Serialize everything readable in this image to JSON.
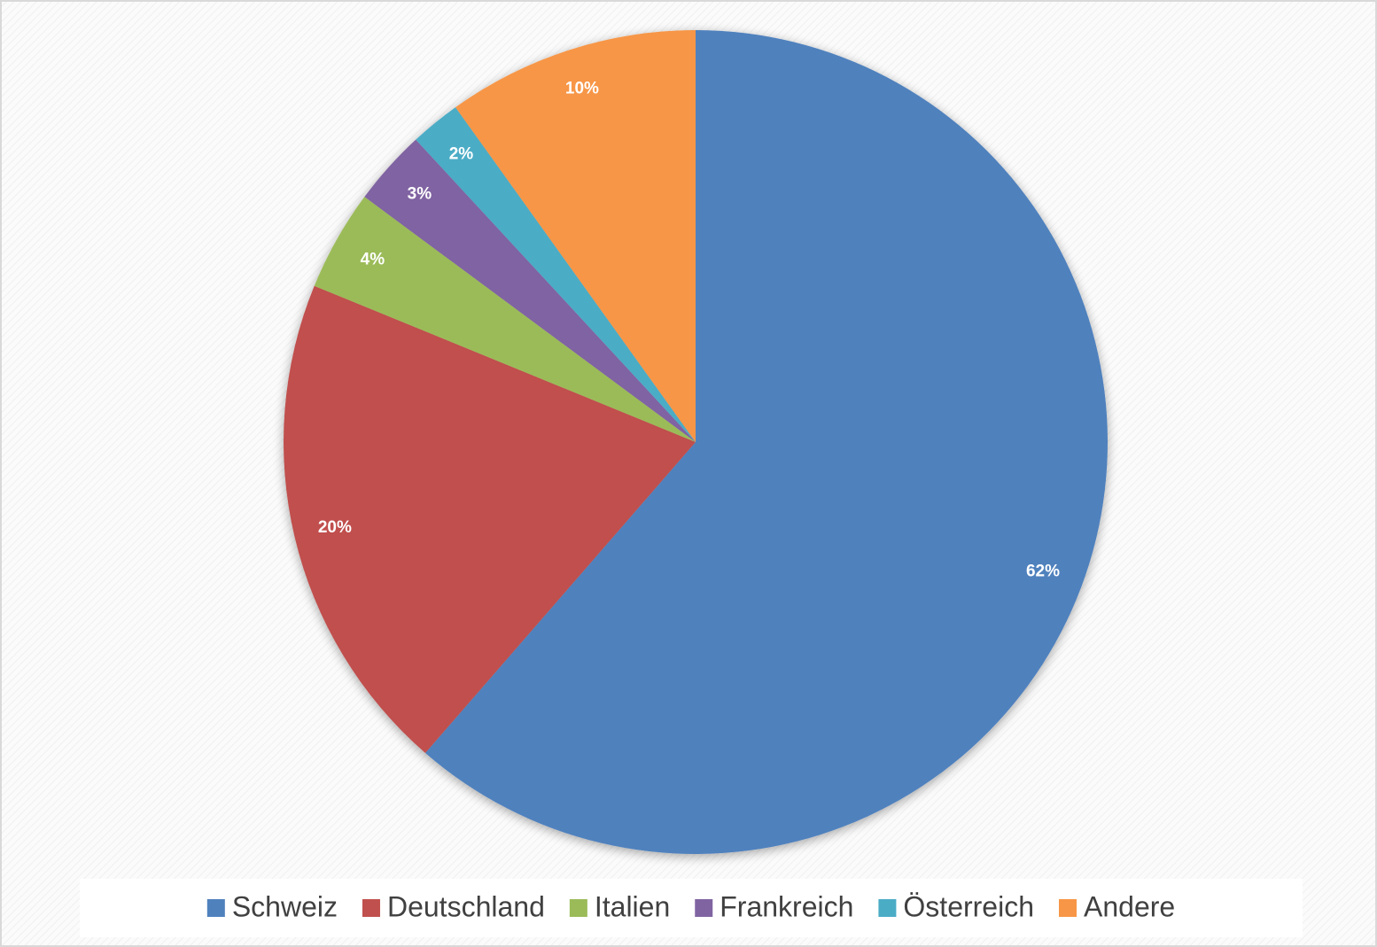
{
  "chart_data": {
    "type": "pie",
    "categories": [
      "Schweiz",
      "Deutschland",
      "Italien",
      "Frankreich",
      "Österreich",
      "Andere"
    ],
    "values": [
      62,
      20,
      4,
      3,
      2,
      10
    ],
    "value_labels": [
      "62%",
      "20%",
      "4%",
      "3%",
      "2%",
      "10%"
    ],
    "colors": [
      "#4f81bd",
      "#c0504d",
      "#9bbb59",
      "#8064a2",
      "#4bacc6",
      "#f79646"
    ],
    "legend": "bottom"
  }
}
